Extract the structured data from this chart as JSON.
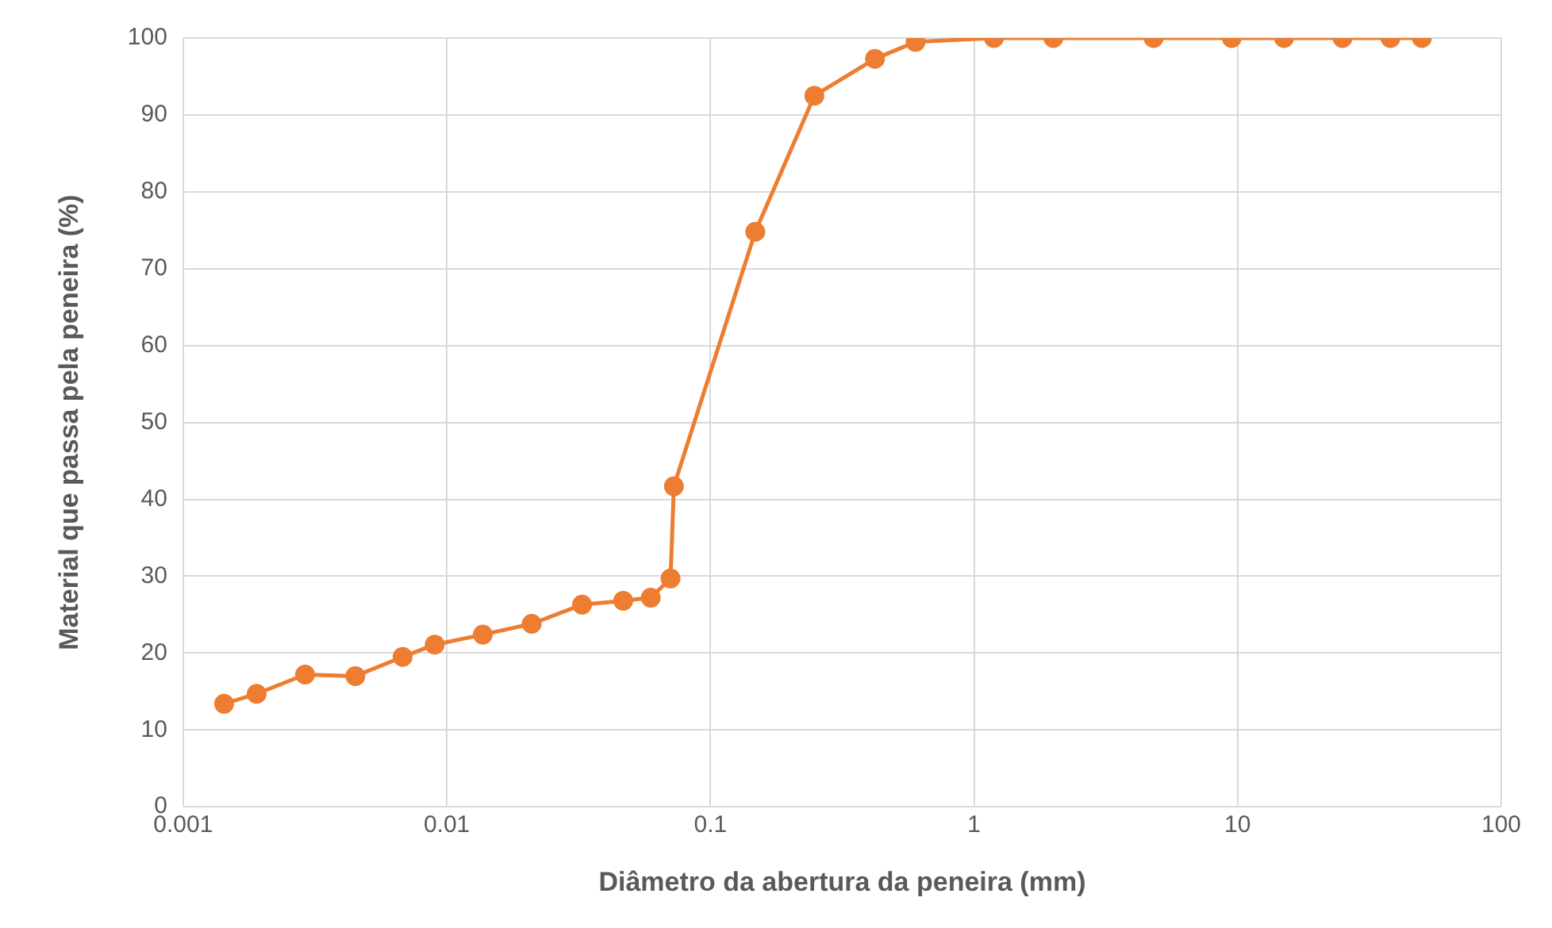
{
  "chart_data": {
    "type": "line",
    "xlabel": "Diâmetro da abertura da peneira (mm)",
    "ylabel": "Material que passa pela peneira (%)",
    "x": [
      0.00143,
      0.0019,
      0.0029,
      0.0045,
      0.0068,
      0.009,
      0.0137,
      0.021,
      0.0326,
      0.0467,
      0.0594,
      0.0706,
      0.0727,
      0.148,
      0.248,
      0.421,
      0.6,
      1.19,
      2.0,
      4.8,
      9.5,
      15,
      25,
      38,
      50
    ],
    "series": [
      {
        "color": "#ed7d31",
        "values": [
          13.4,
          14.7,
          17.2,
          17.0,
          19.5,
          21.1,
          22.4,
          23.8,
          26.3,
          26.8,
          27.2,
          29.7,
          41.7,
          74.8,
          92.5,
          97.3,
          99.5,
          100,
          100,
          100,
          100,
          100,
          100,
          100,
          100
        ]
      }
    ],
    "log": "x",
    "xlim": [
      0.001,
      100
    ],
    "xticks": [
      0.001,
      0.01,
      0.1,
      1,
      10,
      100
    ],
    "ylim": [
      0,
      100
    ],
    "yticks": [
      0,
      10,
      20,
      30,
      40,
      50,
      60,
      70,
      80,
      90,
      100
    ],
    "grid": true,
    "legend": false,
    "marker": "circle",
    "line_style": "solid"
  }
}
